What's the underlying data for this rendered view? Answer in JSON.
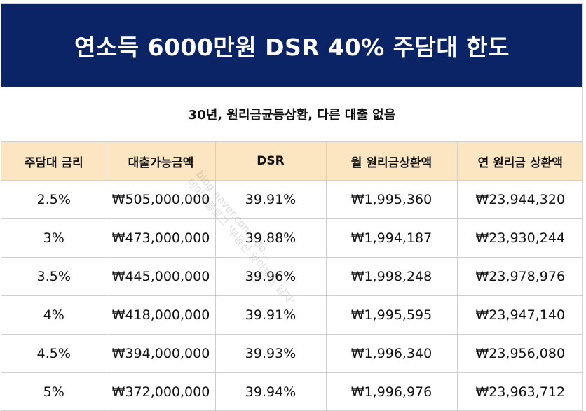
{
  "title": "연소득 6000만원 DSR 40% 주담대 한도",
  "subtitle": "30년, 원리금균등상환, 다른 대출 없음",
  "table": {
    "headers": [
      "주담대 금리",
      "대출가능금액",
      "DSR",
      "월 원리금상환액",
      "연 원리금 상환액"
    ],
    "rows": [
      [
        "2.5%",
        "₩505,000,000",
        "39.91%",
        "₩1,995,360",
        "₩23,944,320"
      ],
      [
        "3%",
        "₩473,000,000",
        "39.88%",
        "₩1,994,187",
        "₩23,930,244"
      ],
      [
        "3.5%",
        "₩445,000,000",
        "39.96%",
        "₩1,998,248",
        "₩23,978,976"
      ],
      [
        "4%",
        "₩418,000,000",
        "39.91%",
        "₩1,995,595",
        "₩23,947,140"
      ],
      [
        "4.5%",
        "₩394,000,000",
        "39.93%",
        "₩1,996,340",
        "₩23,956,080"
      ],
      [
        "5%",
        "₩372,000,000",
        "39.94%",
        "₩1,996,976",
        "₩23,963,712"
      ]
    ]
  },
  "watermark": {
    "line1": "blog.naver.com/sdo...",
    "line2": "네이버블로그 '부동산 알아보는 남자'"
  },
  "colors": {
    "title_bg": "#0b2466",
    "header_bg": "#fbe6c1"
  }
}
